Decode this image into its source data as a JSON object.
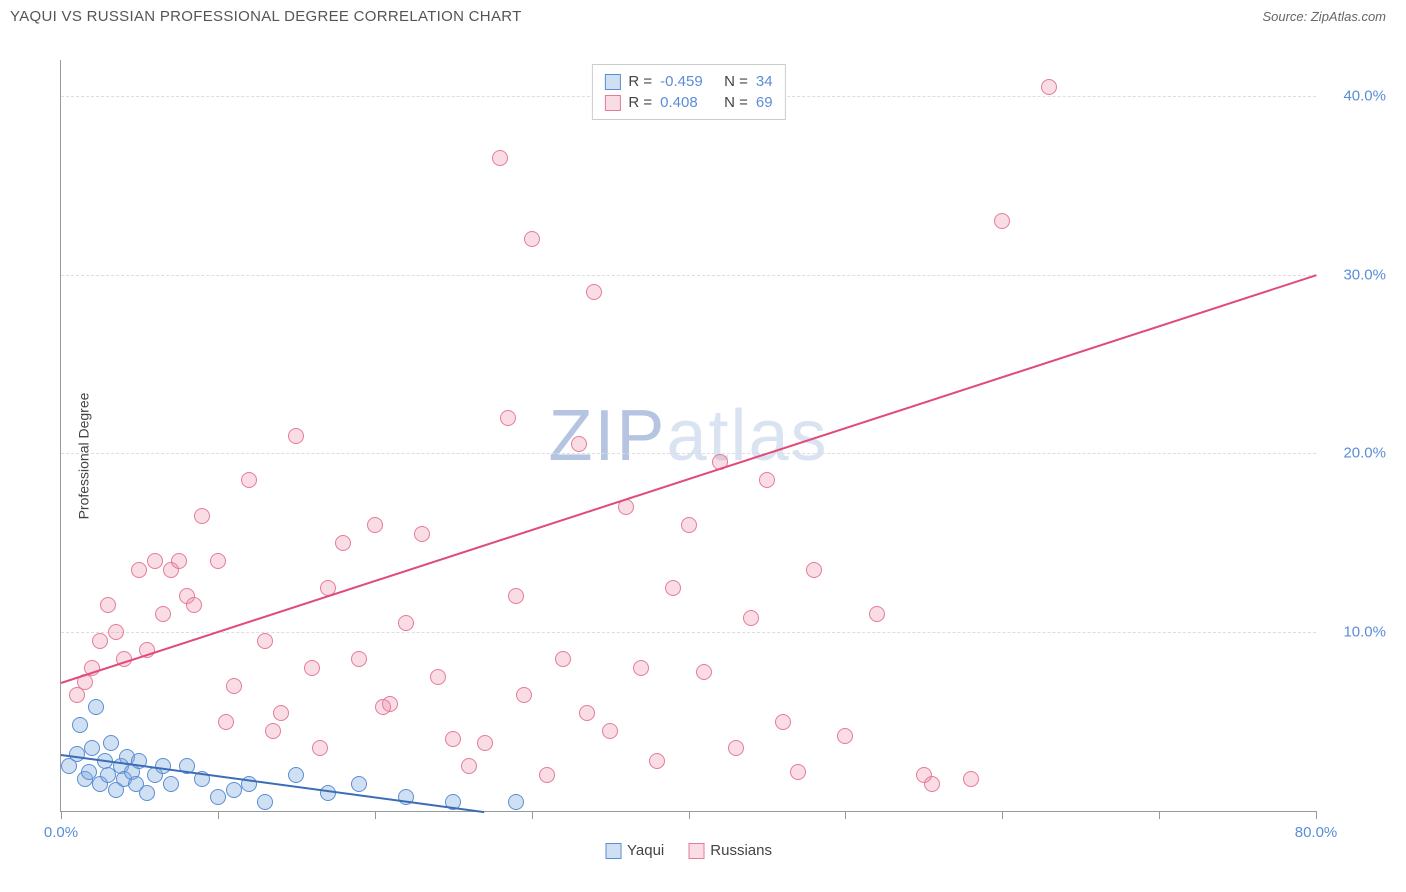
{
  "title": "YAQUI VS RUSSIAN PROFESSIONAL DEGREE CORRELATION CHART",
  "source": "Source: ZipAtlas.com",
  "ylabel": "Professional Degree",
  "watermark_zip": "ZIP",
  "watermark_atlas": "atlas",
  "chart": {
    "type": "scatter",
    "xlim": [
      0,
      80
    ],
    "ylim": [
      0,
      42
    ],
    "ytick_values": [
      10,
      20,
      30,
      40
    ],
    "ytick_labels": [
      "10.0%",
      "20.0%",
      "30.0%",
      "40.0%"
    ],
    "xtick_values": [
      0,
      10,
      20,
      30,
      40,
      50,
      60,
      70,
      80
    ],
    "xtick_labels_shown": {
      "0": "0.0%",
      "80": "80.0%"
    },
    "grid_color": "#dddddd",
    "axis_color": "#999999",
    "background": "#ffffff",
    "marker_radius": 8,
    "marker_stroke_width": 1.5,
    "series": [
      {
        "name": "Yaqui",
        "color_fill": "rgba(120, 165, 220, 0.35)",
        "color_stroke": "#5b8dd6",
        "r": "-0.459",
        "n": "34",
        "trend": {
          "x1": 0,
          "y1": 3.2,
          "x2": 27,
          "y2": 0,
          "color": "#3b6db6",
          "width": 2
        },
        "points": [
          [
            0.5,
            2.5
          ],
          [
            1,
            3.2
          ],
          [
            1.2,
            4.8
          ],
          [
            1.5,
            1.8
          ],
          [
            1.8,
            2.2
          ],
          [
            2,
            3.5
          ],
          [
            2.2,
            5.8
          ],
          [
            2.5,
            1.5
          ],
          [
            2.8,
            2.8
          ],
          [
            3,
            2.0
          ],
          [
            3.2,
            3.8
          ],
          [
            3.5,
            1.2
          ],
          [
            3.8,
            2.5
          ],
          [
            4,
            1.8
          ],
          [
            4.2,
            3.0
          ],
          [
            4.5,
            2.2
          ],
          [
            4.8,
            1.5
          ],
          [
            5,
            2.8
          ],
          [
            5.5,
            1.0
          ],
          [
            6,
            2.0
          ],
          [
            6.5,
            2.5
          ],
          [
            7,
            1.5
          ],
          [
            8,
            2.5
          ],
          [
            9,
            1.8
          ],
          [
            10,
            0.8
          ],
          [
            11,
            1.2
          ],
          [
            12,
            1.5
          ],
          [
            13,
            0.5
          ],
          [
            15,
            2.0
          ],
          [
            17,
            1.0
          ],
          [
            19,
            1.5
          ],
          [
            22,
            0.8
          ],
          [
            25,
            0.5
          ],
          [
            29,
            0.5
          ]
        ]
      },
      {
        "name": "Russians",
        "color_fill": "rgba(235, 140, 165, 0.3)",
        "color_stroke": "#e57b9a",
        "r": "0.408",
        "n": "69",
        "trend": {
          "x1": 0,
          "y1": 7.2,
          "x2": 80,
          "y2": 30,
          "color": "#e04b7a",
          "width": 2
        },
        "points": [
          [
            1,
            6.5
          ],
          [
            1.5,
            7.2
          ],
          [
            2,
            8.0
          ],
          [
            2.5,
            9.5
          ],
          [
            3,
            11.5
          ],
          [
            3.5,
            10.0
          ],
          [
            4,
            8.5
          ],
          [
            5,
            13.5
          ],
          [
            5.5,
            9.0
          ],
          [
            6,
            14.0
          ],
          [
            6.5,
            11.0
          ],
          [
            7,
            13.5
          ],
          [
            7.5,
            14.0
          ],
          [
            8,
            12.0
          ],
          [
            8.5,
            11.5
          ],
          [
            9,
            16.5
          ],
          [
            10,
            14.0
          ],
          [
            11,
            7.0
          ],
          [
            12,
            18.5
          ],
          [
            13,
            9.5
          ],
          [
            14,
            5.5
          ],
          [
            15,
            21.0
          ],
          [
            16,
            8.0
          ],
          [
            17,
            12.5
          ],
          [
            18,
            15.0
          ],
          [
            19,
            8.5
          ],
          [
            20,
            16.0
          ],
          [
            21,
            6.0
          ],
          [
            22,
            10.5
          ],
          [
            23,
            15.5
          ],
          [
            24,
            7.5
          ],
          [
            25,
            4.0
          ],
          [
            26,
            2.5
          ],
          [
            27,
            3.8
          ],
          [
            28,
            36.5
          ],
          [
            28.5,
            22.0
          ],
          [
            29,
            12.0
          ],
          [
            30,
            32.0
          ],
          [
            31,
            2.0
          ],
          [
            32,
            8.5
          ],
          [
            33,
            20.5
          ],
          [
            34,
            29.0
          ],
          [
            35,
            4.5
          ],
          [
            36,
            17.0
          ],
          [
            37,
            8.0
          ],
          [
            38,
            2.8
          ],
          [
            39,
            12.5
          ],
          [
            40,
            16.0
          ],
          [
            41,
            7.8
          ],
          [
            42,
            19.5
          ],
          [
            43,
            3.5
          ],
          [
            44,
            10.8
          ],
          [
            45,
            18.5
          ],
          [
            46,
            5.0
          ],
          [
            48,
            13.5
          ],
          [
            50,
            4.2
          ],
          [
            52,
            11.0
          ],
          [
            55,
            2.0
          ],
          [
            58,
            1.8
          ],
          [
            60,
            33.0
          ],
          [
            63,
            40.5
          ],
          [
            55.5,
            1.5
          ],
          [
            47,
            2.2
          ],
          [
            33.5,
            5.5
          ],
          [
            29.5,
            6.5
          ],
          [
            13.5,
            4.5
          ],
          [
            10.5,
            5.0
          ],
          [
            16.5,
            3.5
          ],
          [
            20.5,
            5.8
          ]
        ]
      }
    ],
    "legend_bottom": [
      {
        "label": "Yaqui",
        "fill": "rgba(120, 165, 220, 0.35)",
        "stroke": "#5b8dd6"
      },
      {
        "label": "Russians",
        "fill": "rgba(235, 140, 165, 0.3)",
        "stroke": "#e57b9a"
      }
    ]
  }
}
